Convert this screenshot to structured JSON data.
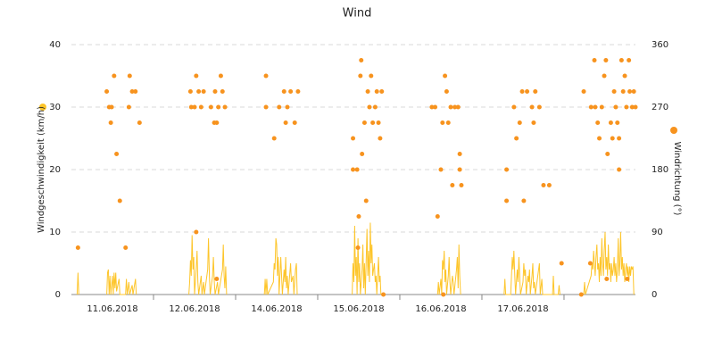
{
  "chart_data": {
    "type": "line",
    "title": "Wind",
    "xlim": [
      0,
      6.87
    ],
    "xticks": [
      {
        "value": 0.5,
        "label": "11.06.2018"
      },
      {
        "value": 1.5,
        "label": "12.06.2018"
      },
      {
        "value": 2.5,
        "label": "14.06.2018"
      },
      {
        "value": 3.5,
        "label": "15.06.2018"
      },
      {
        "value": 4.5,
        "label": "16.06.2018"
      },
      {
        "value": 5.5,
        "label": "17.06.2018"
      }
    ],
    "ylim": [
      0,
      40
    ],
    "yticks": [
      0,
      10,
      20,
      30,
      40
    ],
    "y2lim": [
      0,
      360
    ],
    "y2ticks": [
      0,
      90,
      180,
      270,
      360
    ],
    "grid": true,
    "series": [
      {
        "name": "Windgeschwindigkeit (km/h)",
        "type": "line",
        "color": "#fdc52a",
        "x": [
          0.07,
          0.08,
          0.09,
          0.25,
          0.43,
          0.44,
          0.45,
          0.46,
          0.47,
          0.48,
          0.5,
          0.51,
          0.52,
          0.53,
          0.54,
          0.55,
          0.58,
          0.59,
          0.66,
          0.67,
          0.68,
          0.7,
          0.71,
          0.74,
          0.75,
          0.78,
          0.79,
          1.1,
          1.43,
          1.44,
          1.45,
          1.46,
          1.47,
          1.48,
          1.49,
          1.5,
          1.52,
          1.53,
          1.54,
          1.55,
          1.58,
          1.59,
          1.61,
          1.62,
          1.66,
          1.67,
          1.68,
          1.69,
          1.72,
          1.73,
          1.74,
          1.75,
          1.78,
          1.79,
          1.84,
          1.85,
          1.86,
          1.87,
          1.88,
          1.89,
          2.1,
          2.35,
          2.36,
          2.37,
          2.38,
          2.39,
          2.46,
          2.47,
          2.48,
          2.49,
          2.5,
          2.51,
          2.52,
          2.53,
          2.55,
          2.56,
          2.57,
          2.59,
          2.6,
          2.61,
          2.62,
          2.63,
          2.64,
          2.67,
          2.68,
          2.7,
          2.71,
          2.73,
          2.74,
          2.75,
          3.1,
          3.42,
          3.43,
          3.44,
          3.45,
          3.46,
          3.47,
          3.48,
          3.49,
          3.5,
          3.51,
          3.52,
          3.54,
          3.55,
          3.56,
          3.57,
          3.58,
          3.6,
          3.61,
          3.62,
          3.63,
          3.64,
          3.65,
          3.66,
          3.67,
          3.68,
          3.69,
          3.7,
          3.71,
          3.72,
          3.74,
          3.75,
          3.76,
          3.77,
          4.1,
          4.46,
          4.47,
          4.48,
          4.5,
          4.51,
          4.52,
          4.53,
          4.54,
          4.55,
          4.56,
          4.57,
          4.59,
          4.6,
          4.61,
          4.62,
          4.64,
          4.65,
          4.66,
          4.69,
          4.7,
          4.71,
          4.72,
          4.73,
          4.74,
          5.0,
          5.27,
          5.28,
          5.29,
          5.35,
          5.36,
          5.37,
          5.38,
          5.39,
          5.4,
          5.41,
          5.43,
          5.44,
          5.45,
          5.46,
          5.47,
          5.5,
          5.51,
          5.52,
          5.53,
          5.54,
          5.56,
          5.57,
          5.58,
          5.59,
          5.61,
          5.62,
          5.63,
          5.64,
          5.65,
          5.7,
          5.71,
          5.73,
          5.74,
          5.86,
          5.87,
          5.88,
          5.93,
          5.94,
          5.95,
          6.1,
          6.24,
          6.25,
          6.26,
          6.33,
          6.34,
          6.35,
          6.36,
          6.37,
          6.38,
          6.39,
          6.4,
          6.41,
          6.42,
          6.43,
          6.44,
          6.45,
          6.46,
          6.47,
          6.48,
          6.49,
          6.5,
          6.51,
          6.52,
          6.53,
          6.54,
          6.55,
          6.56,
          6.57,
          6.58,
          6.59,
          6.6,
          6.61,
          6.62,
          6.63,
          6.64,
          6.65,
          6.66,
          6.67,
          6.68,
          6.69,
          6.7,
          6.71,
          6.72,
          6.73,
          6.74,
          6.75,
          6.76,
          6.77,
          6.78,
          6.79,
          6.8,
          6.81,
          6.82,
          6.83,
          6.84,
          6.85
        ],
        "values": [
          0,
          3.5,
          0,
          null,
          0,
          3.5,
          4,
          0,
          3,
          0,
          3,
          0,
          3.5,
          1,
          3.5,
          0.5,
          2.5,
          0,
          0,
          2.5,
          0,
          2,
          0,
          1.5,
          0,
          2.5,
          0,
          null,
          0,
          2,
          5.5,
          3,
          9.5,
          4,
          6,
          0,
          4,
          7,
          2,
          0,
          3,
          0,
          2,
          0,
          4,
          9,
          3,
          0,
          3,
          6,
          2,
          0,
          2,
          0,
          4,
          8,
          3,
          1,
          4.5,
          0,
          null,
          0,
          2.5,
          0,
          2.5,
          0,
          2,
          5,
          4,
          9,
          8,
          3,
          6,
          0,
          6,
          3,
          0,
          4,
          2,
          6,
          1,
          3,
          0,
          5,
          2,
          3,
          0,
          4,
          5,
          0,
          null,
          0,
          5,
          2,
          11,
          3,
          6,
          0,
          9,
          2,
          5,
          0,
          4,
          8,
          1,
          5,
          0,
          10.5,
          3,
          7,
          2,
          11.5,
          5,
          8,
          3,
          4,
          5,
          2,
          3,
          0,
          6,
          2,
          3,
          0,
          null,
          0,
          2,
          0,
          2.5,
          0,
          5.5,
          4,
          7,
          2,
          4,
          0,
          3,
          6,
          2,
          0,
          3,
          2,
          0,
          4,
          6,
          1,
          8,
          3,
          0,
          null,
          0,
          2.5,
          0,
          0,
          3,
          6,
          4,
          7,
          3,
          0,
          4,
          2,
          6,
          3,
          0,
          2,
          5,
          3,
          4,
          0,
          3,
          2,
          4,
          0,
          3,
          5,
          1,
          2,
          0,
          5,
          0,
          2.5,
          0,
          0,
          3,
          0,
          0,
          1.5,
          0,
          null,
          0,
          2,
          0,
          3,
          5,
          4,
          7,
          5,
          3,
          6,
          8,
          4,
          5,
          2,
          6,
          3,
          9,
          5,
          3,
          7,
          10,
          4,
          6,
          3,
          8,
          4,
          5,
          2,
          5,
          3,
          4,
          6,
          3,
          5,
          2,
          4,
          9,
          3,
          5,
          10,
          4,
          6,
          3,
          5,
          2,
          4,
          5,
          3,
          4.5,
          2,
          4.5,
          3,
          4.5,
          4,
          4.5,
          0
        ]
      },
      {
        "name": "Windrichtung (°)",
        "type": "scatter",
        "axis": "y2",
        "color": "#f7931e",
        "x": [
          0.08,
          0.43,
          0.46,
          0.49,
          0.48,
          0.52,
          0.55,
          0.59,
          0.66,
          0.7,
          0.71,
          0.74,
          0.78,
          0.83,
          1.45,
          1.46,
          1.5,
          1.52,
          1.52,
          1.55,
          1.58,
          1.61,
          1.7,
          1.74,
          1.77,
          1.77,
          1.75,
          1.79,
          1.82,
          1.84,
          1.87,
          2.37,
          2.37,
          2.47,
          2.53,
          2.59,
          2.61,
          2.63,
          2.67,
          2.72,
          2.76,
          3.43,
          3.43,
          3.48,
          3.5,
          3.49,
          3.52,
          3.53,
          3.54,
          3.57,
          3.59,
          3.61,
          3.63,
          3.65,
          3.67,
          3.7,
          3.72,
          3.74,
          3.76,
          3.78,
          3.8,
          4.39,
          4.43,
          4.46,
          4.5,
          4.52,
          4.55,
          4.57,
          4.59,
          4.62,
          4.64,
          4.67,
          4.71,
          4.73,
          4.73,
          4.75,
          4.53,
          5.3,
          5.3,
          5.39,
          5.42,
          5.46,
          5.49,
          5.51,
          5.55,
          5.61,
          5.63,
          5.65,
          5.7,
          5.75,
          5.82,
          5.97,
          6.21,
          6.24,
          6.32,
          6.33,
          6.37,
          6.38,
          6.41,
          6.43,
          6.46,
          6.49,
          6.51,
          6.52,
          6.53,
          6.57,
          6.59,
          6.61,
          6.63,
          6.65,
          6.67,
          6.7,
          6.72,
          6.74,
          6.76,
          6.77,
          6.79,
          6.8,
          6.83,
          6.85,
          6.87,
          6.67
        ],
        "values": [
          67.5,
          292.5,
          270,
          270,
          247.5,
          315,
          202.5,
          135,
          67.5,
          270,
          315,
          292.5,
          292.5,
          247.5,
          292.5,
          270,
          270,
          315,
          90,
          292.5,
          270,
          292.5,
          270,
          247.5,
          247.5,
          22.5,
          292.5,
          270,
          315,
          292.5,
          270,
          315,
          270,
          225,
          270,
          292.5,
          247.5,
          270,
          292.5,
          247.5,
          292.5,
          225,
          180,
          180,
          112.5,
          67.5,
          315,
          337.5,
          202.5,
          247.5,
          135,
          292.5,
          270,
          315,
          247.5,
          270,
          292.5,
          247.5,
          225,
          292.5,
          0,
          270,
          270,
          112.5,
          180,
          247.5,
          315,
          292.5,
          247.5,
          270,
          157.5,
          270,
          270,
          180,
          202.5,
          157.5,
          0,
          180,
          135,
          270,
          225,
          247.5,
          292.5,
          135,
          292.5,
          270,
          247.5,
          292.5,
          270,
          157.5,
          157.5,
          45,
          0,
          292.5,
          45,
          270,
          337.5,
          270,
          247.5,
          225,
          270,
          315,
          337.5,
          22.5,
          202.5,
          247.5,
          225,
          292.5,
          270,
          247.5,
          225,
          337.5,
          292.5,
          315,
          270,
          22.5,
          337.5,
          292.5,
          270,
          292.5,
          270,
          180
        ]
      }
    ]
  }
}
